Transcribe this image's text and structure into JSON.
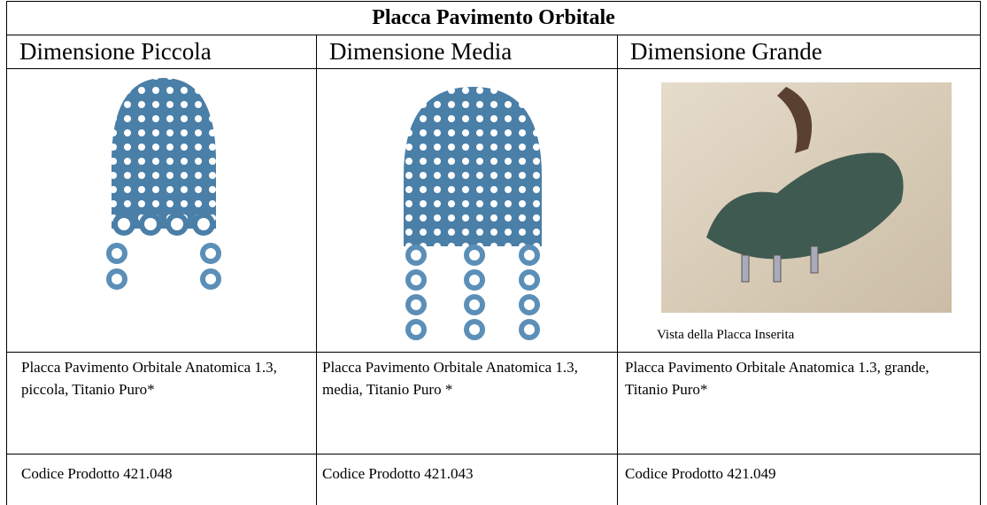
{
  "table": {
    "title": "Placca Pavimento Orbitale",
    "columns": [
      "Dimensione Piccola",
      "Dimensione Media",
      "Dimensione Grande"
    ],
    "caption": "Vista della Placca Inserita",
    "rows": [
      [
        "Placca Pavimento Orbitale Anatomica 1.3, piccola, Titanio Puro*",
        "Placca Pavimento Orbitale Anatomica 1.3, media, Titanio Puro *",
        "Placca Pavimento Orbitale Anatomica 1.3, grande, Titanio Puro*"
      ],
      [
        "Codice Prodotto 421.048",
        "Codice Prodotto 421.043",
        "Codice Prodotto 421.049"
      ]
    ]
  }
}
